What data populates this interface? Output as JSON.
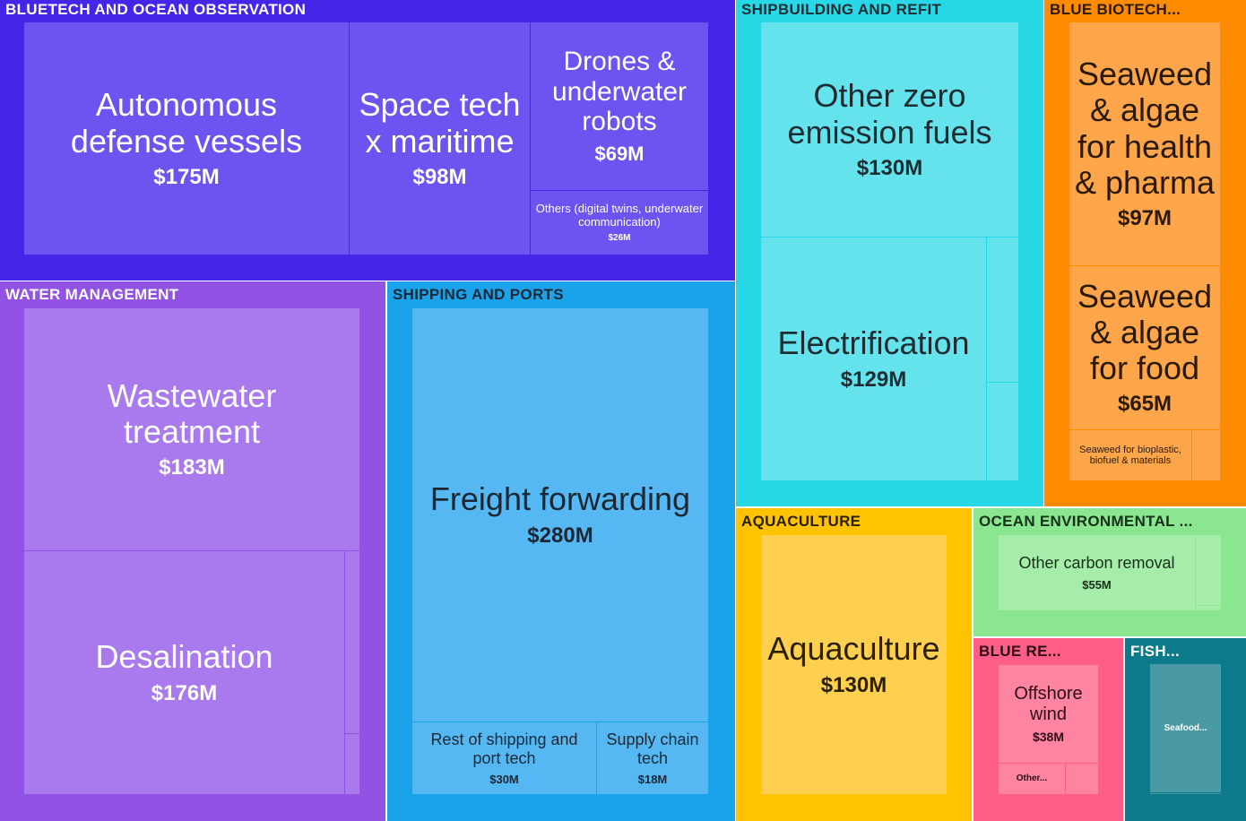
{
  "chart_data": {
    "type": "treemap",
    "unit": "$M",
    "groups": [
      {
        "name": "BLUETECH AND OCEAN OBSERVATION",
        "color": "#4526e8",
        "leaf_color": "#6b54ef",
        "text_color": "#ffffff",
        "children": [
          {
            "label": "Autonomous defense vessels",
            "value": 175,
            "display": "$175M"
          },
          {
            "label": "Space tech x maritime",
            "value": 98,
            "display": "$98M"
          },
          {
            "label": "Drones & underwater robots",
            "value": 69,
            "display": "$69M"
          },
          {
            "label": "Others (digital twins, underwater communication)",
            "value": 26,
            "display": "$26M"
          }
        ]
      },
      {
        "name": "SHIPBUILDING AND REFIT",
        "color": "#29d8e6",
        "leaf_color": "#64e3ec",
        "text_color": "#1d2b33",
        "children": [
          {
            "label": "Other zero emission fuels",
            "value": 130,
            "display": "$130M"
          },
          {
            "label": "Electrification",
            "value": 129,
            "display": "$129M"
          }
        ]
      },
      {
        "name": "BLUE BIOTECH...",
        "color": "#ff8c00",
        "leaf_color": "#ffa64a",
        "text_color": "#2a1a05",
        "children": [
          {
            "label": "Seaweed & algae for health & pharma",
            "value": 97,
            "display": "$97M"
          },
          {
            "label": "Seaweed & algae for food",
            "value": 65,
            "display": "$65M"
          },
          {
            "label": "Seaweed for bioplastic, biofuel & materials",
            "value": null,
            "display": ""
          }
        ]
      },
      {
        "name": "WATER MANAGEMENT",
        "color": "#9252e3",
        "leaf_color": "#a87aed",
        "text_color": "#ffffff",
        "children": [
          {
            "label": "Wastewater treatment",
            "value": 183,
            "display": "$183M"
          },
          {
            "label": "Desalination",
            "value": 176,
            "display": "$176M"
          }
        ]
      },
      {
        "name": "SHIPPING AND PORTS",
        "color": "#1aa3eb",
        "leaf_color": "#56b8f2",
        "text_color": "#1b2733",
        "children": [
          {
            "label": "Freight forwarding",
            "value": 280,
            "display": "$280M"
          },
          {
            "label": "Rest of shipping and port tech",
            "value": 30,
            "display": "$30M"
          },
          {
            "label": "Supply chain tech",
            "value": 18,
            "display": "$18M"
          }
        ]
      },
      {
        "name": "AQUACULTURE",
        "color": "#ffc300",
        "leaf_color": "#ffd04f",
        "text_color": "#2a2000",
        "children": [
          {
            "label": "Aquaculture",
            "value": 130,
            "display": "$130M"
          }
        ]
      },
      {
        "name": "OCEAN ENVIRONMENTAL ...",
        "color": "#8ae68f",
        "leaf_color": "#a6edaa",
        "text_color": "#16301a",
        "children": [
          {
            "label": "Other carbon removal",
            "value": 55,
            "display": "$55M"
          }
        ]
      },
      {
        "name": "BLUE RE...",
        "color": "#ff5f86",
        "leaf_color": "#ff84a2",
        "text_color": "#2a0e16",
        "children": [
          {
            "label": "Offshore wind",
            "value": 38,
            "display": "$38M"
          },
          {
            "label": "Other...",
            "value": null,
            "display": ""
          }
        ]
      },
      {
        "name": "FISH...",
        "color": "#0c7a8a",
        "leaf_color": "#4a9aa6",
        "text_color": "#ffffff",
        "children": [
          {
            "label": "Seafood...",
            "value": null,
            "display": ""
          }
        ]
      }
    ]
  }
}
